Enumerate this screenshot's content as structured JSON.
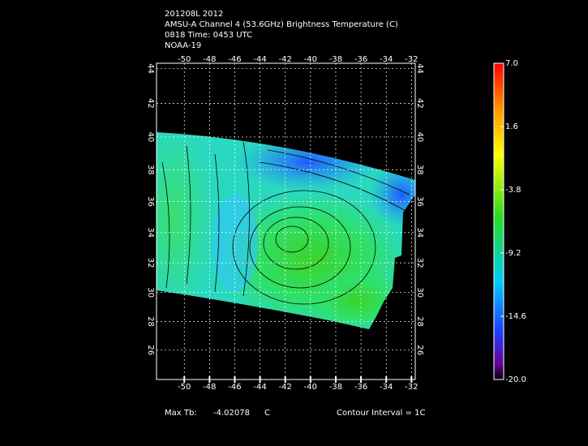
{
  "title_lines": [
    "201208L 2012",
    "AMSU-A Channel 4 (53.6GHz) Brightness Temperature (C)",
    "0818 Time: 0453 UTC",
    "NOAA-19"
  ],
  "map": {
    "projection": "mercator",
    "xlim": [
      -52.2,
      -31.7
    ],
    "ylim": [
      23.9,
      44.3
    ],
    "xticks": [
      -50,
      -48,
      -46,
      -44,
      -42,
      -40,
      -38,
      -36,
      -34,
      -32
    ],
    "yticks": [
      26,
      28,
      30,
      32,
      34,
      36,
      38,
      40,
      42,
      44
    ],
    "grid": true
  },
  "colorbar": {
    "lim": [
      -20,
      7
    ],
    "ticks": [
      {
        "value": 7,
        "label": "7.0"
      },
      1.6,
      -3.8,
      -9.2,
      -14.6,
      {
        "value": -20,
        "label": "-20.0"
      }
    ]
  },
  "footer": {
    "max_label": "Max Tb:",
    "max_value": -4.02078,
    "max_unit": "C",
    "contour_interval": "Contour Interval = 1C"
  }
}
